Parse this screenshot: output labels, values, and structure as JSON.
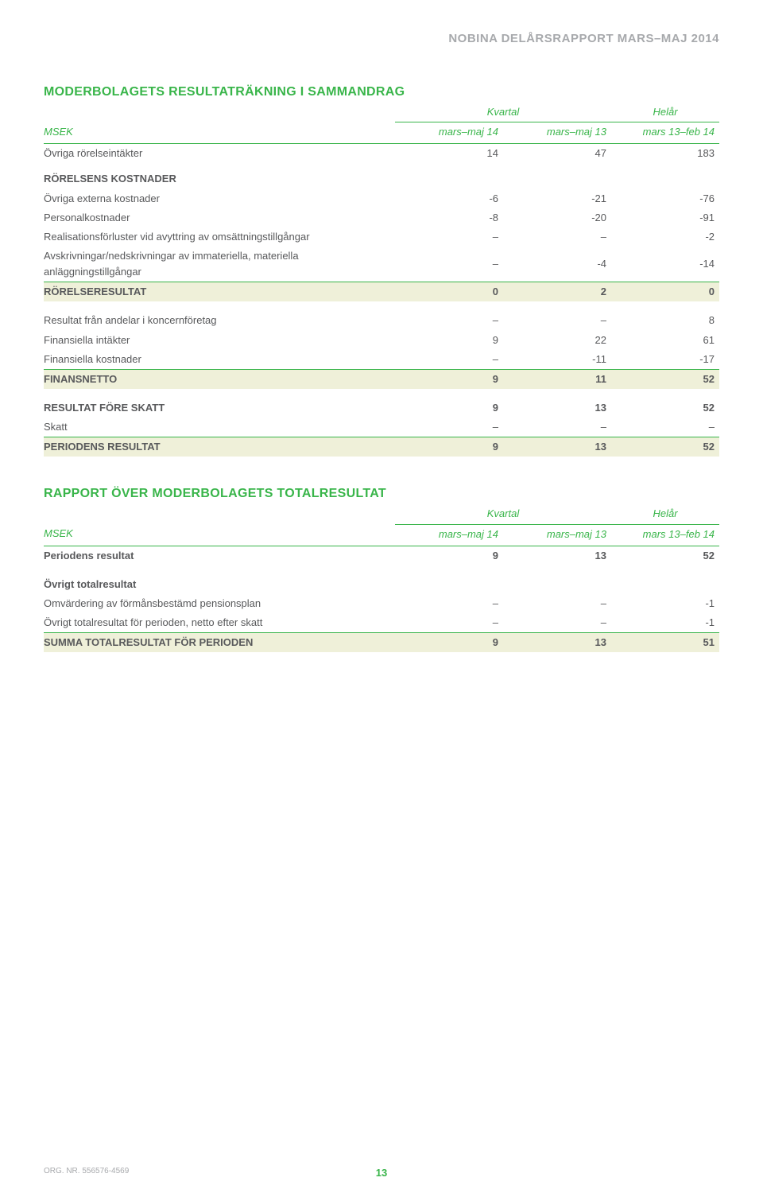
{
  "header": {
    "text": "NOBINA DELÅRSRAPPORT MARS–MAJ 2014"
  },
  "colors": {
    "accent": "#39b54a",
    "highlight": "#eff0d9",
    "body_text": "#58595b",
    "muted": "#a7a9ac",
    "background": "#ffffff"
  },
  "typography": {
    "body_fontsize_pt": 10,
    "title_fontsize_pt": 12,
    "header_fontsize_pt": 11,
    "font_family": "sans-serif"
  },
  "table1": {
    "title": "MODERBOLAGETS RESULTATRÄKNING I SAMMANDRAG",
    "group_headers": [
      "Kvartal",
      "Helår"
    ],
    "row_label": "MSEK",
    "periods": [
      "mars–maj 14",
      "mars–maj 13",
      "mars 13–feb 14"
    ],
    "col_widths_pct": [
      52,
      16,
      16,
      16
    ],
    "rows": [
      {
        "label": "Övriga rörelseintäkter",
        "vals": [
          "14",
          "47",
          "183"
        ]
      },
      {
        "label": "RÖRELSENS KOSTNADER",
        "vals": [
          "",
          "",
          ""
        ],
        "section": true
      },
      {
        "label": "Övriga externa kostnader",
        "vals": [
          "-6",
          "-21",
          "-76"
        ]
      },
      {
        "label": "Personalkostnader",
        "vals": [
          "-8",
          "-20",
          "-91"
        ]
      },
      {
        "label": "Realisationsförluster vid avyttring av omsättningstillgångar",
        "vals": [
          "–",
          "–",
          "-2"
        ]
      },
      {
        "label": "Avskrivningar/nedskrivningar av immateriella, materiella anläggningstillgångar",
        "vals": [
          "–",
          "-4",
          "-14"
        ]
      },
      {
        "label": "RÖRELSERESULTAT",
        "vals": [
          "0",
          "2",
          "0"
        ],
        "bold": true,
        "hl": true,
        "rule": true
      },
      {
        "label": "Resultat från andelar i koncernföretag",
        "vals": [
          "–",
          "–",
          "8"
        ],
        "gap": true
      },
      {
        "label": "Finansiella intäkter",
        "vals": [
          "9",
          "22",
          "61"
        ]
      },
      {
        "label": "Finansiella kostnader",
        "vals": [
          "–",
          "-11",
          "-17"
        ]
      },
      {
        "label": "FINANSNETTO",
        "vals": [
          "9",
          "11",
          "52"
        ],
        "bold": true,
        "hl": true,
        "rule": true
      },
      {
        "label": "RESULTAT FÖRE SKATT",
        "vals": [
          "9",
          "13",
          "52"
        ],
        "bold": true,
        "gap": true
      },
      {
        "label": "Skatt",
        "vals": [
          "–",
          "–",
          "–"
        ]
      },
      {
        "label": "PERIODENS RESULTAT",
        "vals": [
          "9",
          "13",
          "52"
        ],
        "bold": true,
        "hl": true,
        "rule": true
      }
    ]
  },
  "table2": {
    "title": "RAPPORT ÖVER MODERBOLAGETS TOTALRESULTAT",
    "group_headers": [
      "Kvartal",
      "Helår"
    ],
    "row_label": "MSEK",
    "periods": [
      "mars–maj 14",
      "mars–maj 13",
      "mars 13–feb 14"
    ],
    "col_widths_pct": [
      52,
      16,
      16,
      16
    ],
    "rows": [
      {
        "label": "Periodens resultat",
        "vals": [
          "9",
          "13",
          "52"
        ],
        "bold": true
      },
      {
        "label": "Övrigt totalresultat",
        "vals": [
          "",
          "",
          ""
        ],
        "bold": true,
        "gap": true
      },
      {
        "label": "Omvärdering av förmånsbestämd pensionsplan",
        "vals": [
          "–",
          "–",
          "-1"
        ]
      },
      {
        "label": "Övrigt totalresultat för perioden, netto efter skatt",
        "vals": [
          "–",
          "–",
          "-1"
        ]
      },
      {
        "label": "SUMMA TOTALRESULTAT FÖR PERIODEN",
        "vals": [
          "9",
          "13",
          "51"
        ],
        "bold": true,
        "hl": true,
        "rule": true
      }
    ]
  },
  "footer": {
    "org": "ORG. NR. 556576-4569",
    "page": "13"
  }
}
